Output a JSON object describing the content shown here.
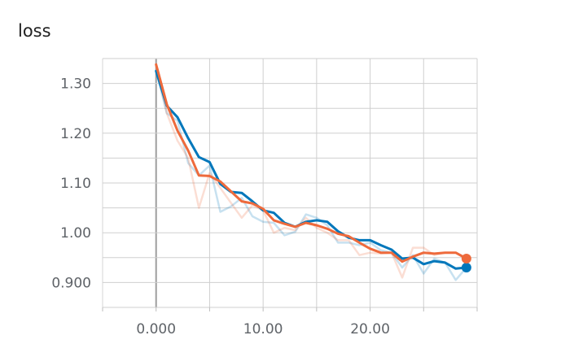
{
  "title": "loss",
  "chart_data": {
    "type": "line",
    "title": "loss",
    "xlabel": "",
    "ylabel": "",
    "xlim": [
      -5,
      30
    ],
    "ylim": [
      0.85,
      1.35
    ],
    "x_ticks": [
      0,
      10,
      20
    ],
    "x_tick_labels": [
      "0.000",
      "10.00",
      "20.00"
    ],
    "y_ticks": [
      0.9,
      1.0,
      1.1,
      1.2,
      1.3
    ],
    "y_tick_labels": [
      "0.900",
      "1.00",
      "1.10",
      "1.20",
      "1.30"
    ],
    "grid": true,
    "legend": "none",
    "series": [
      {
        "color": "#0077bb",
        "x": [
          0,
          1,
          2,
          3,
          4,
          5,
          6,
          7,
          8,
          9,
          10,
          11,
          12,
          13,
          14,
          15,
          16,
          17,
          18,
          19,
          20,
          21,
          22,
          23,
          24,
          25,
          26,
          27,
          28,
          29
        ],
        "values": [
          1.325,
          1.255,
          1.232,
          1.19,
          1.152,
          1.142,
          1.098,
          1.082,
          1.08,
          1.063,
          1.045,
          1.04,
          1.02,
          1.012,
          1.022,
          1.025,
          1.022,
          1.003,
          0.99,
          0.985,
          0.985,
          0.975,
          0.966,
          0.948,
          0.95,
          0.937,
          0.943,
          0.94,
          0.928,
          0.93
        ],
        "raw_values": [
          1.325,
          1.24,
          1.225,
          1.14,
          1.115,
          1.135,
          1.042,
          1.053,
          1.07,
          1.033,
          1.022,
          1.02,
          0.995,
          1.002,
          1.037,
          1.03,
          1.015,
          0.98,
          0.98,
          0.975,
          0.98,
          0.965,
          0.96,
          0.93,
          0.955,
          0.918,
          0.948,
          0.94,
          0.905,
          0.93
        ]
      },
      {
        "color": "#ee6a3c",
        "x": [
          0,
          1,
          2,
          3,
          4,
          5,
          6,
          7,
          8,
          9,
          10,
          11,
          12,
          13,
          14,
          15,
          16,
          17,
          18,
          19,
          20,
          21,
          22,
          23,
          24,
          25,
          26,
          27,
          28,
          29
        ],
        "values": [
          1.338,
          1.258,
          1.205,
          1.165,
          1.115,
          1.114,
          1.103,
          1.083,
          1.063,
          1.059,
          1.048,
          1.025,
          1.018,
          1.012,
          1.02,
          1.015,
          1.008,
          0.998,
          0.993,
          0.98,
          0.968,
          0.96,
          0.96,
          0.942,
          0.952,
          0.96,
          0.958,
          0.96,
          0.96,
          0.948
        ],
        "raw_values": [
          1.338,
          1.24,
          1.185,
          1.15,
          1.05,
          1.12,
          1.09,
          1.06,
          1.03,
          1.055,
          1.045,
          1.0,
          1.01,
          1.005,
          1.03,
          1.01,
          1.0,
          0.985,
          0.985,
          0.955,
          0.96,
          0.958,
          0.96,
          0.91,
          0.97,
          0.97,
          0.955,
          0.96,
          0.96,
          0.948
        ]
      }
    ]
  }
}
